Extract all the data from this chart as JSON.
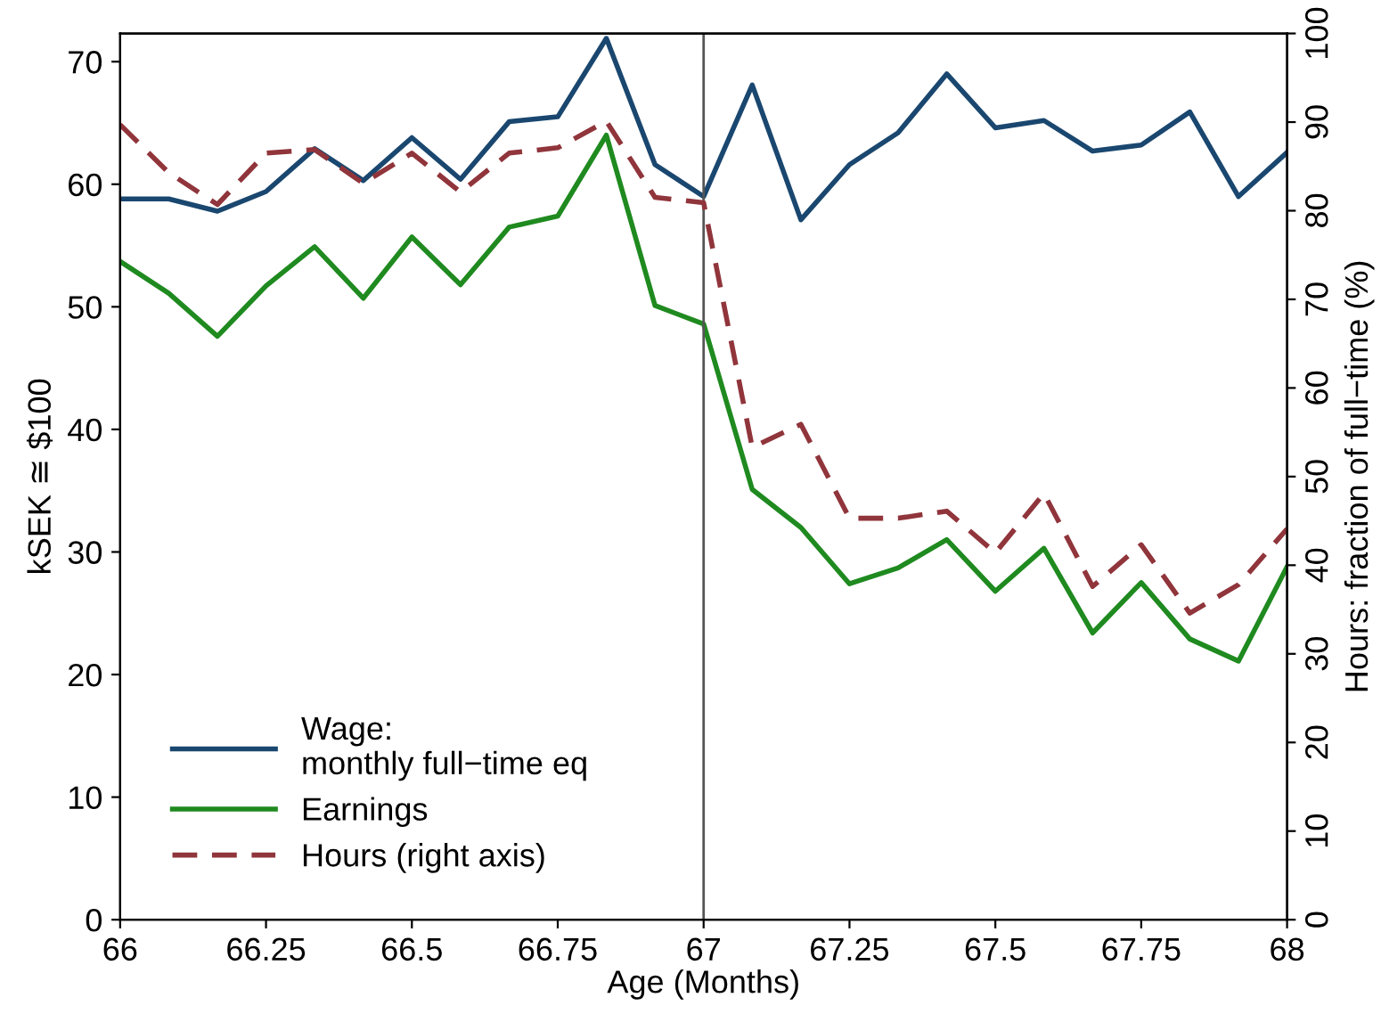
{
  "chart_data": {
    "type": "line",
    "xlabel": "Age (Months)",
    "ylabel": "kSEK ≅ $100",
    "y2label": "Hours: fraction of full−time (%)",
    "x": [
      66,
      66.0833,
      66.1667,
      66.25,
      66.3333,
      66.4167,
      66.5,
      66.5833,
      66.6667,
      66.75,
      66.8333,
      66.9167,
      67,
      67.0833,
      67.1667,
      67.25,
      67.3333,
      67.4167,
      67.5,
      67.5833,
      67.6667,
      67.75,
      67.8333,
      67.9167,
      68
    ],
    "series": [
      {
        "name": "Wage:\nmonthly full−time eq",
        "color": "#1a476f",
        "line_style": "solid",
        "values": [
          58.8,
          58.8,
          57.8,
          59.4,
          62.9,
          60.3,
          63.8,
          60.4,
          65.1,
          65.5,
          71.9,
          61.6,
          59.0,
          68.1,
          57.1,
          61.6,
          64.2,
          69.0,
          64.6,
          65.2,
          62.7,
          63.2,
          65.9,
          59.0,
          62.6
        ]
      },
      {
        "name": "Earnings",
        "color": "#1f8a1f",
        "line_style": "solid",
        "values": [
          53.7,
          51.1,
          47.6,
          51.7,
          54.9,
          50.7,
          55.7,
          51.8,
          56.5,
          57.4,
          64.0,
          50.1,
          48.6,
          35.1,
          32.0,
          27.4,
          28.7,
          31.0,
          26.8,
          30.3,
          23.4,
          27.5,
          22.9,
          21.1,
          28.8
        ]
      },
      {
        "name": "Hours (right axis)",
        "color": "#90353b",
        "line_style": "dashed",
        "axis": "y2",
        "values": [
          89.7,
          84.3,
          80.7,
          86.5,
          86.9,
          83.1,
          86.5,
          82.1,
          86.5,
          87.1,
          90.1,
          81.5,
          80.9,
          53.3,
          55.9,
          45.3,
          45.3,
          46.1,
          41.4,
          48.1,
          37.6,
          42.3,
          34.6,
          37.8,
          44.1
        ]
      }
    ],
    "xlim": [
      66,
      68
    ],
    "xticks": [
      66,
      66.25,
      66.5,
      66.75,
      67,
      67.25,
      67.5,
      67.75,
      68
    ],
    "ylim": [
      0,
      72.3
    ],
    "yticks": [
      0,
      10,
      20,
      30,
      40,
      50,
      60,
      70
    ],
    "y2lim": [
      0,
      100
    ],
    "y2ticks": [
      0,
      10,
      20,
      30,
      40,
      50,
      60,
      70,
      80,
      90,
      100
    ],
    "ref_lines": [
      {
        "axis": "x",
        "value": 67,
        "color": "#555555"
      }
    ],
    "grid": false,
    "legend": "bottom left"
  }
}
